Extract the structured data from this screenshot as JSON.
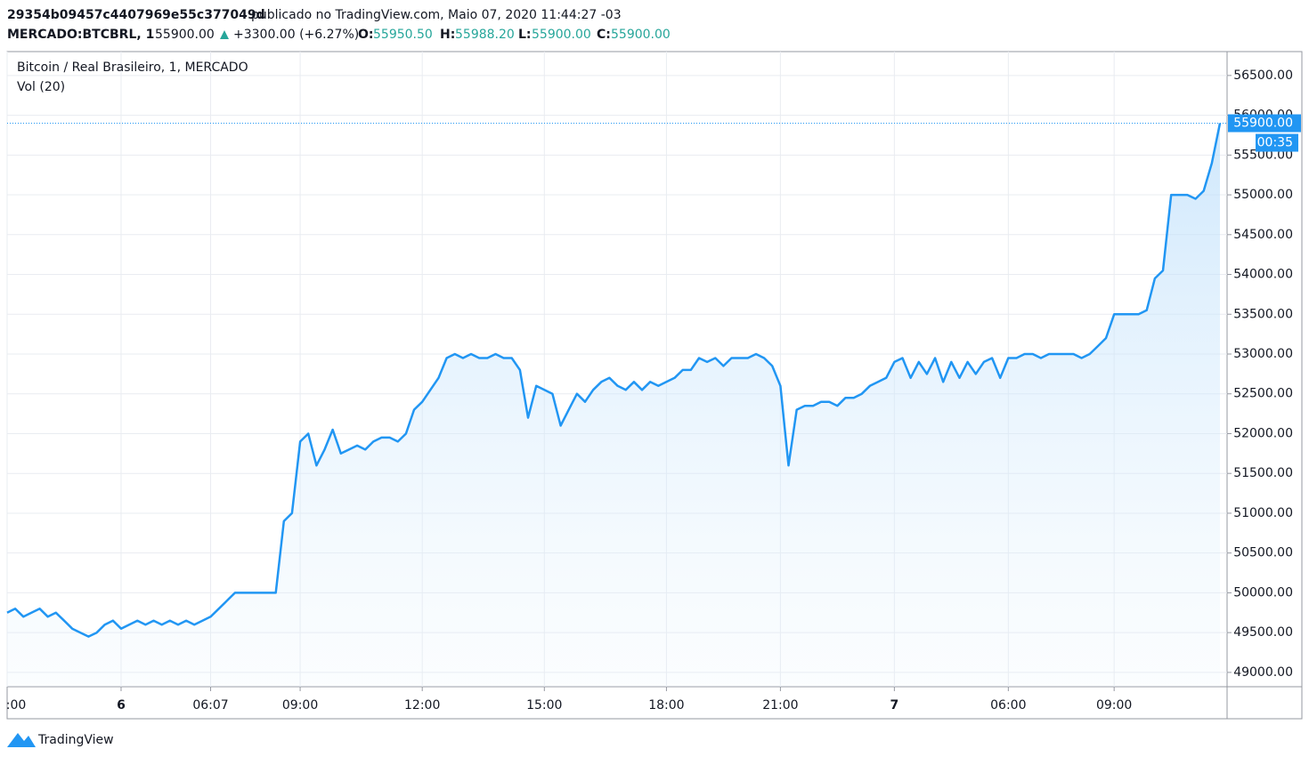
{
  "header": {
    "author": "29354b09457c4407969e55c377049d",
    "published": "publicado no TradingView.com, Maio 07, 2020 11:44:27 -03",
    "symbol": "MERCADO:BTCBRL, 1",
    "last": "55900.00",
    "change": "+3300.00 (+6.27%)",
    "open_label": "O:",
    "open": "55950.50",
    "high_label": "H:",
    "high": "55988.20",
    "low_label": "L:",
    "low": "55900.00",
    "close_label": "C:",
    "close": "55900.00"
  },
  "footer": {
    "brand": "TradingView"
  },
  "chart_data": {
    "type": "line",
    "title": "Bitcoin / Real Brasileiro, 1, MERCADO",
    "subtitle": "Vol (20)",
    "categories": [
      ":00",
      null,
      null,
      null,
      null,
      null,
      null,
      null,
      null,
      null,
      null,
      null,
      null,
      null,
      "6",
      null,
      null,
      null,
      null,
      null,
      null,
      null,
      null,
      null,
      null,
      "06:07",
      null,
      null,
      null,
      null,
      null,
      null,
      null,
      null,
      null,
      null,
      "09:00",
      null,
      null,
      null,
      null,
      null,
      null,
      null,
      null,
      null,
      null,
      null,
      null,
      null,
      null,
      "12:00",
      null,
      null,
      null,
      null,
      null,
      null,
      null,
      null,
      null,
      null,
      null,
      null,
      null,
      null,
      "15:00",
      null,
      null,
      null,
      null,
      null,
      null,
      null,
      null,
      null,
      null,
      null,
      null,
      null,
      null,
      "18:00",
      null,
      null,
      null,
      null,
      null,
      null,
      null,
      null,
      null,
      null,
      null,
      null,
      null,
      "21:00",
      null,
      null,
      null,
      null,
      null,
      null,
      null,
      null,
      null,
      null,
      null,
      null,
      null,
      "7",
      null,
      null,
      null,
      null,
      null,
      null,
      null,
      null,
      null,
      null,
      null,
      null,
      null,
      "06:00",
      null,
      null,
      null,
      null,
      null,
      null,
      null,
      null,
      null,
      null,
      null,
      null,
      "09:00",
      null,
      null,
      null,
      null,
      null,
      null,
      null,
      null,
      null,
      null,
      null,
      null,
      null
    ],
    "series": [
      {
        "name": "Bitcoin / Real Brasileiro",
        "color": "#2196f3",
        "values": [
          49750,
          49800,
          49700,
          49750,
          49800,
          49700,
          49750,
          49650,
          49550,
          49500,
          49450,
          49500,
          49600,
          49650,
          49550,
          49600,
          49650,
          49600,
          49650,
          49600,
          49650,
          49600,
          49650,
          49600,
          49650,
          49700,
          49800,
          49900,
          50000,
          50000,
          50000,
          50000,
          50000,
          50000,
          50900,
          51000,
          51900,
          52000,
          51600,
          51800,
          52050,
          51750,
          51800,
          51850,
          51800,
          51900,
          51950,
          51950,
          51900,
          52000,
          52300,
          52400,
          52550,
          52700,
          52950,
          53000,
          52950,
          53000,
          52950,
          52950,
          53000,
          52950,
          52950,
          52800,
          52200,
          52600,
          52550,
          52500,
          52100,
          52300,
          52500,
          52400,
          52550,
          52650,
          52700,
          52600,
          52550,
          52650,
          52550,
          52650,
          52600,
          52650,
          52700,
          52800,
          52800,
          52950,
          52900,
          52950,
          52850,
          52950,
          52950,
          52950,
          53000,
          52950,
          52850,
          52600,
          51600,
          52300,
          52350,
          52350,
          52400,
          52400,
          52350,
          52450,
          52450,
          52500,
          52600,
          52650,
          52700,
          52900,
          52950,
          52700,
          52900,
          52750,
          52950,
          52650,
          52900,
          52700,
          52900,
          52750,
          52900,
          52950,
          52700,
          52950,
          52950,
          53000,
          53000,
          52950,
          53000,
          53000,
          53000,
          53000,
          52950,
          53000,
          53100,
          53200,
          53500,
          53500,
          53500,
          53500,
          53550,
          53950,
          54050,
          55000,
          55000,
          55000,
          54950,
          55050,
          55400,
          55900
        ]
      }
    ],
    "last_price": {
      "value": 55900,
      "label": "55900.00"
    },
    "countdown": "00:35",
    "ylim": [
      48820,
      56800
    ],
    "yticks": [
      {
        "value": 49000,
        "label": "49000.00"
      },
      {
        "value": 49500,
        "label": "49500.00"
      },
      {
        "value": 50000,
        "label": "50000.00"
      },
      {
        "value": 50500,
        "label": "50500.00"
      },
      {
        "value": 51000,
        "label": "51000.00"
      },
      {
        "value": 51500,
        "label": "51500.00"
      },
      {
        "value": 52000,
        "label": "52000.00"
      },
      {
        "value": 52500,
        "label": "52500.00"
      },
      {
        "value": 53000,
        "label": "53000.00"
      },
      {
        "value": 53500,
        "label": "53500.00"
      },
      {
        "value": 54000,
        "label": "54000.00"
      },
      {
        "value": 54500,
        "label": "54500.00"
      },
      {
        "value": 55000,
        "label": "55000.00"
      },
      {
        "value": 55500,
        "label": "55500.00"
      },
      {
        "value": 56000,
        "label": "56000.00"
      },
      {
        "value": 56500,
        "label": "56500.00"
      }
    ],
    "grid": true
  }
}
